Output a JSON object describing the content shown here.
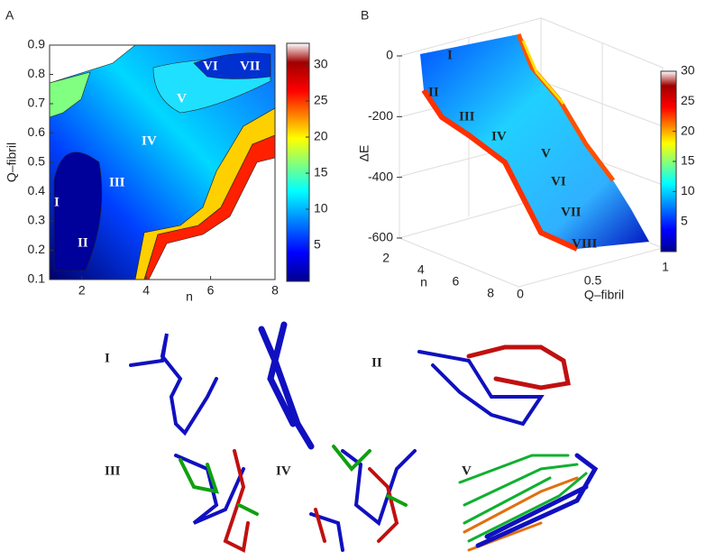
{
  "chart_data": [
    {
      "type": "contour",
      "panel": "A",
      "xlabel": "n",
      "ylabel": "Q–fibril",
      "xlim": [
        1,
        8
      ],
      "xticks": [
        2,
        4,
        6,
        8
      ],
      "ylim": [
        0.1,
        0.9
      ],
      "yticks": [
        0.1,
        0.2,
        0.3,
        0.4,
        0.5,
        0.6,
        0.7,
        0.8,
        0.9
      ],
      "colorbar": {
        "lim": [
          0,
          33
        ],
        "ticks": [
          5,
          10,
          15,
          20,
          25,
          30
        ]
      },
      "annotations": [
        "I",
        "II",
        "III",
        "IV",
        "V",
        "VI",
        "VII"
      ]
    },
    {
      "type": "surface3d",
      "panel": "B",
      "zlabel": "ΔE",
      "xlabel": "n",
      "ylabel": "Q–fibril",
      "zlim": [
        -600,
        0
      ],
      "zticks": [
        0,
        -200,
        -400,
        -600
      ],
      "xlim": [
        2,
        8
      ],
      "xticks": [
        2,
        4,
        6,
        8
      ],
      "ylim": [
        0,
        1
      ],
      "yticks": [
        0,
        0.5,
        1
      ],
      "colorbar": {
        "lim": [
          0,
          30
        ],
        "ticks": [
          5,
          10,
          15,
          20,
          25,
          30
        ]
      },
      "annotations": [
        "I",
        "II",
        "III",
        "IV",
        "V",
        "VI",
        "VII",
        "VIII"
      ]
    }
  ],
  "structures": {
    "labels": [
      "I",
      "II",
      "III",
      "IV",
      "V"
    ]
  }
}
